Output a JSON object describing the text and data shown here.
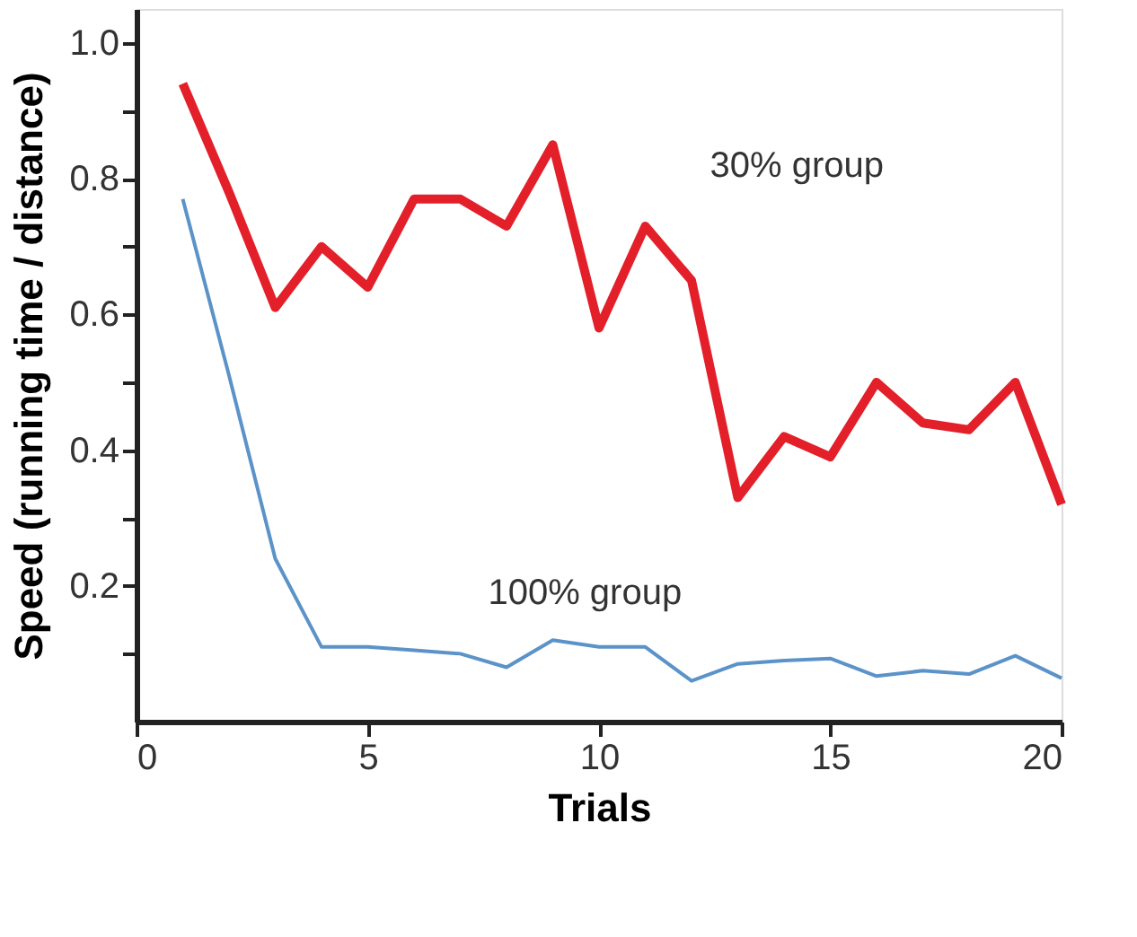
{
  "chart_data": {
    "type": "line",
    "xlabel": "Trials",
    "ylabel": "Speed (running time / distance)",
    "x": [
      1,
      2,
      3,
      4,
      5,
      6,
      7,
      8,
      9,
      10,
      11,
      12,
      13,
      14,
      15,
      16,
      17,
      18,
      19,
      20
    ],
    "series": [
      {
        "name": "30% group",
        "color": "#e3202a",
        "values": [
          0.94,
          0.78,
          0.61,
          0.7,
          0.64,
          0.77,
          0.77,
          0.73,
          0.85,
          0.58,
          0.73,
          0.65,
          0.33,
          0.42,
          0.39,
          0.5,
          0.44,
          0.43,
          0.5,
          0.32
        ]
      },
      {
        "name": "100% group",
        "color": "#5b93c9",
        "values": [
          0.77,
          0.51,
          0.24,
          0.11,
          0.11,
          0.105,
          0.1,
          0.08,
          0.12,
          0.11,
          0.11,
          0.06,
          0.085,
          0.09,
          0.093,
          0.067,
          0.075,
          0.07,
          0.097,
          0.064
        ]
      }
    ],
    "xlim": [
      0,
      20
    ],
    "xticks": [
      0,
      5,
      10,
      15,
      20
    ],
    "ylim": [
      0,
      1.05
    ],
    "yticks": [
      {
        "value": 0.1,
        "label": null
      },
      {
        "value": 0.2,
        "label": "0.2"
      },
      {
        "value": 0.3,
        "label": null
      },
      {
        "value": 0.4,
        "label": "0.4"
      },
      {
        "value": 0.5,
        "label": null
      },
      {
        "value": 0.6,
        "label": "0.6"
      },
      {
        "value": 0.7,
        "label": null
      },
      {
        "value": 0.8,
        "label": "0.8"
      },
      {
        "value": 0.9,
        "label": null
      },
      {
        "value": 1.0,
        "label": "1.0"
      }
    ],
    "grid": false,
    "marker": "none",
    "line_style": "solid"
  }
}
